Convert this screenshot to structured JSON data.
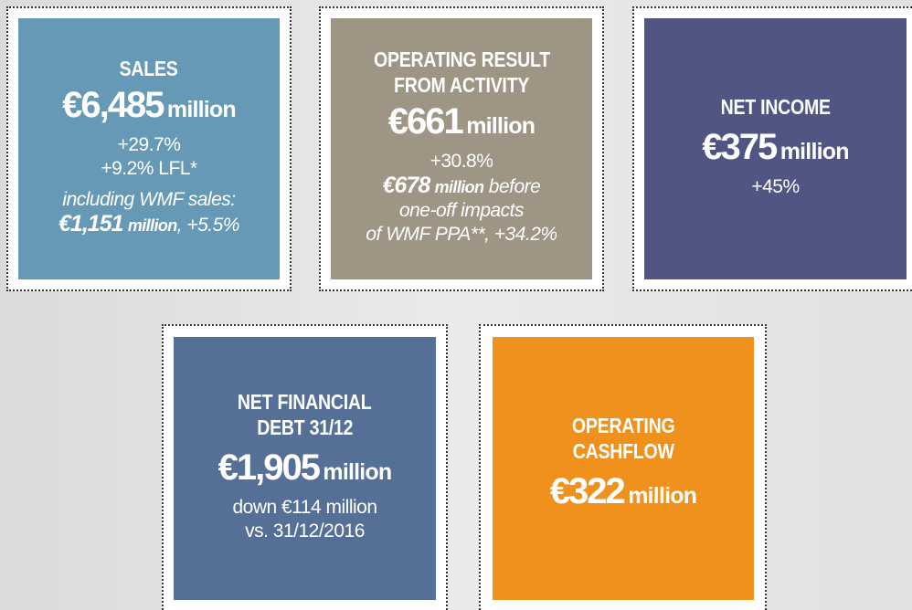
{
  "tiles": [
    {
      "title": [
        "SALES"
      ],
      "amount": "€6,485",
      "unit": "million",
      "lines": [
        "+29.7%",
        "+9.2% LFL*"
      ],
      "detail_intro": "including WMF sales:",
      "detail_amount": "€1,151",
      "detail_unit": "million",
      "detail_rest": ", +5.5%"
    },
    {
      "title": [
        "OPERATING RESULT",
        "FROM ACTIVITY"
      ],
      "amount": "€661",
      "unit": "million",
      "lines": [
        "+30.8%"
      ],
      "detail_amount": "€678",
      "detail_unit": "million",
      "detail_rest": " before",
      "detail_lines": [
        "one-off impacts",
        "of WMF PPA**, +34.2%"
      ]
    },
    {
      "title": [
        "NET INCOME"
      ],
      "amount": "€375",
      "unit": "million",
      "lines": [
        "+45%"
      ]
    },
    {
      "title": [
        "NET FINANCIAL",
        "DEBT 31/12"
      ],
      "amount": "€1,905",
      "unit": "million",
      "lines": [
        "down €114 million",
        "vs. 31/12/2016"
      ]
    },
    {
      "title": [
        "OPERATING",
        "CASHFLOW"
      ],
      "amount": "€322",
      "unit": "million"
    }
  ]
}
